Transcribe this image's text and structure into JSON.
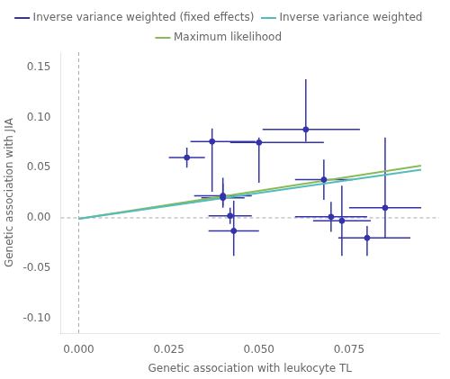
{
  "chart_data": {
    "type": "scatter",
    "xlabel": "Genetic association with leukocyte TL",
    "ylabel": "Genetic association with JIA",
    "xlim": [
      -0.005,
      0.1
    ],
    "ylim": [
      -0.115,
      0.165
    ],
    "xticks": [
      {
        "value": 0.0,
        "label": "0.000"
      },
      {
        "value": 0.025,
        "label": "0.025"
      },
      {
        "value": 0.05,
        "label": "0.050"
      },
      {
        "value": 0.075,
        "label": "0.075"
      }
    ],
    "yticks": [
      {
        "value": -0.1,
        "label": "-0.10"
      },
      -0.05,
      {
        "value": 0.0,
        "label": "0.00"
      },
      0.05,
      {
        "value": 0.1,
        "label": "0.10"
      },
      0.15
    ],
    "grid": false,
    "legend": "top",
    "hline": 0.0,
    "vline": 0.0,
    "series": [
      {
        "name": "Inverse variance weighted",
        "type": "line",
        "color": "#55bbbb",
        "x": [
          0.0,
          0.095
        ],
        "values": [
          -0.001,
          0.048
        ]
      },
      {
        "name": "Maximum likelihood",
        "type": "line",
        "color": "#88bb55",
        "x": [
          0.0,
          0.095
        ],
        "values": [
          -0.001,
          0.052
        ]
      },
      {
        "name": "Inverse variance weighted (fixed effects)",
        "type": "scatter",
        "color": "#3333aa",
        "marker": "circle",
        "x": [
          0.03,
          0.037,
          0.04,
          0.04,
          0.042,
          0.043,
          0.05,
          0.063,
          0.068,
          0.07,
          0.073,
          0.08,
          0.085
        ],
        "values": [
          0.06,
          0.076,
          0.022,
          0.02,
          0.002,
          -0.013,
          0.075,
          0.088,
          0.038,
          0.001,
          -0.003,
          -0.02,
          0.01
        ],
        "xerr_lo": [
          0.005,
          0.006,
          0.008,
          0.006,
          0.006,
          0.007,
          0.008,
          0.012,
          0.008,
          0.01,
          0.008,
          0.008,
          0.01
        ],
        "xerr_hi": [
          0.005,
          0.012,
          0.008,
          0.006,
          0.006,
          0.007,
          0.018,
          0.015,
          0.008,
          0.01,
          0.008,
          0.012,
          0.01
        ],
        "yerr_lo": [
          0.01,
          0.05,
          0.012,
          0.008,
          0.008,
          0.025,
          0.04,
          0.012,
          0.02,
          0.015,
          0.035,
          0.018,
          0.03
        ],
        "yerr_hi": [
          0.01,
          0.013,
          0.012,
          0.02,
          0.008,
          0.03,
          0.005,
          0.05,
          0.02,
          0.015,
          0.035,
          0.012,
          0.07
        ]
      }
    ]
  }
}
